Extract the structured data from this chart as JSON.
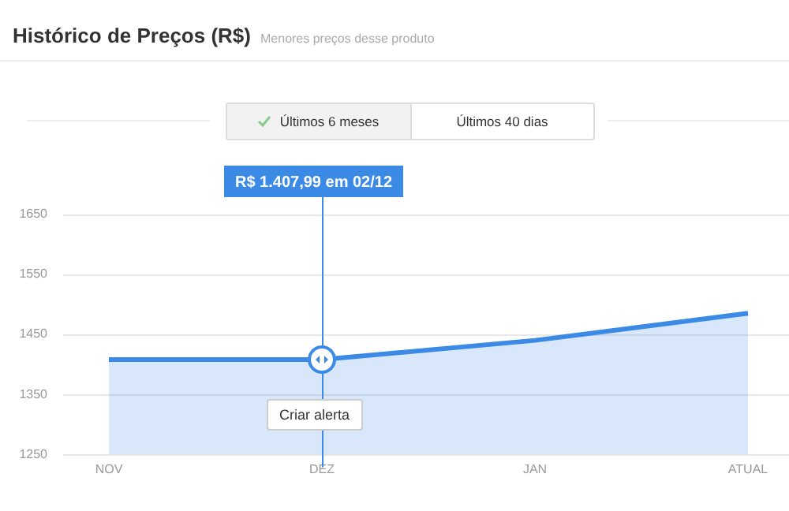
{
  "chart_data": {
    "type": "area",
    "title": "Histórico de Preços (R$)",
    "subtitle": "Menores preços desse produto",
    "categories": [
      "NOV",
      "DEZ",
      "JAN",
      "ATUAL"
    ],
    "series": [
      {
        "color": "#3b8ae6",
        "values": [
          1408,
          1408,
          1440,
          1485
        ]
      }
    ],
    "ref_lines": [
      {
        "axis": "x",
        "value": "DEZ",
        "color": "#3b8ae6"
      }
    ],
    "ylim": [
      1250,
      1650
    ],
    "yticks": [
      1250,
      1350,
      1450,
      1550,
      1650
    ],
    "grid": "y",
    "legend": false,
    "marker": "none",
    "line_style": "solid",
    "annotations": [
      "R$ 1.407,99 em 02/12",
      "Criar alerta",
      "Últimos 6 meses",
      "Últimos 40 dias"
    ]
  }
}
